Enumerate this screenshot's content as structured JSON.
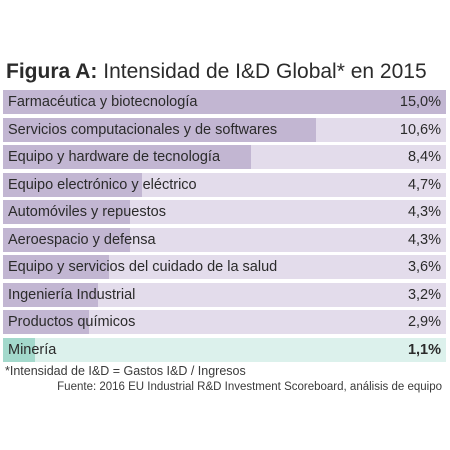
{
  "title": {
    "prefix": "Figura A:",
    "text": "Intensidad de I&D Global* en 2015"
  },
  "colors": {
    "fill": "#c2b6d2",
    "track": "#e3dceb",
    "highlight_fill": "#a3d9cc",
    "highlight_track": "#dcf1ec"
  },
  "chart_data": {
    "type": "bar",
    "orientation": "horizontal",
    "title": "Intensidad de I&D Global* en 2015",
    "unit": "%",
    "xlim": [
      0,
      15
    ],
    "categories": [
      "Farmacéutica y biotecnología",
      "Servicios computacionales y de softwares",
      "Equipo y hardware de tecnología",
      "Equipo electrónico y eléctrico",
      "Automóviles y repuestos",
      "Aeroespacio y defensa",
      "Equipo y servicios del cuidado de la salud",
      "Ingeniería Industrial",
      "Productos químicos",
      "Minería"
    ],
    "values": [
      15.0,
      10.6,
      8.4,
      4.7,
      4.3,
      4.3,
      3.6,
      3.2,
      2.9,
      1.1
    ],
    "value_labels": [
      "15,0%",
      "10,6%",
      "8,4%",
      "4,7%",
      "4,3%",
      "4,3%",
      "3,6%",
      "3,2%",
      "2,9%",
      "1,1%"
    ],
    "highlighted_category": "Minería"
  },
  "footnote": "*Intensidad de I&D = Gastos I&D / Ingresos",
  "source": "Fuente: 2016 EU Industrial R&D Investment Scoreboard, análisis de equipo"
}
